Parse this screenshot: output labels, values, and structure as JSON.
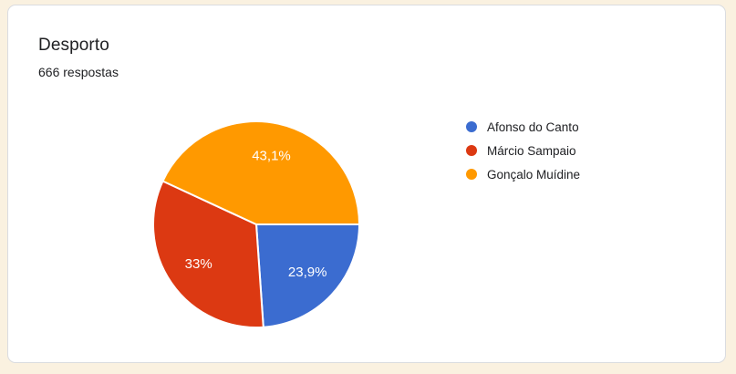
{
  "page": {
    "background_color": "#faf1e0"
  },
  "card": {
    "title": "Desporto",
    "responses_label": "666 respostas",
    "background_color": "#ffffff",
    "border_color": "#dadce0",
    "text_color": "#202124"
  },
  "chart_data": {
    "type": "pie",
    "title": "Desporto",
    "total_responses": 666,
    "legend_position": "right",
    "start_angle": "3-oclock-clockwise",
    "slice_label_color": "#ffffff",
    "slice_divider_color": "#ffffff",
    "slices": [
      {
        "label": "Afonso do Canto",
        "value_pct": 23.9,
        "display_pct": "23,9%",
        "color": "#3b6cd0"
      },
      {
        "label": "Márcio Sampaio",
        "value_pct": 33.0,
        "display_pct": "33%",
        "color": "#dc3912"
      },
      {
        "label": "Gonçalo Muídine",
        "value_pct": 43.1,
        "display_pct": "43,1%",
        "color": "#ff9900"
      }
    ]
  }
}
